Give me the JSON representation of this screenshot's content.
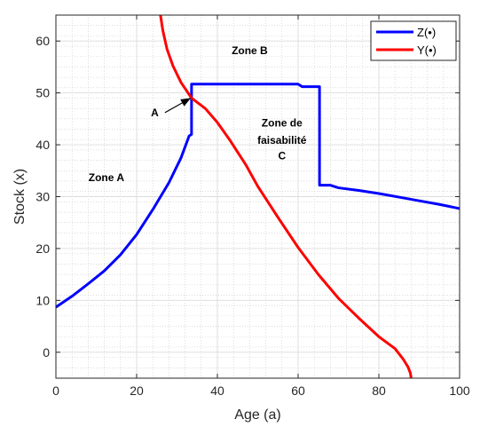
{
  "chart_data": {
    "type": "line",
    "title": "",
    "xlabel": "Age (a)",
    "ylabel": "Stock (x)",
    "xlim": [
      0,
      100
    ],
    "ylim": [
      -5,
      65
    ],
    "xticks": [
      0,
      20,
      40,
      60,
      80,
      100
    ],
    "yticks": [
      0,
      10,
      20,
      30,
      40,
      50,
      60
    ],
    "xtick_labels": [
      "0",
      "20",
      "40",
      "60",
      "80",
      "100"
    ],
    "ytick_labels": [
      "0",
      "10",
      "20",
      "30",
      "40",
      "50",
      "60"
    ],
    "grid": true,
    "minor_grid": true,
    "legend_position": "top-right",
    "series": [
      {
        "name": "Z(•)",
        "color": "#0000ff",
        "x": [
          0,
          4,
          8,
          12,
          16,
          20,
          24,
          28,
          31,
          33,
          33.6,
          33.6,
          40,
          50,
          60,
          61,
          65,
          65.3,
          65.3,
          68,
          70,
          75,
          80,
          85,
          90,
          95,
          100
        ],
        "y": [
          8.7,
          10.8,
          13.2,
          15.7,
          18.8,
          22.7,
          27.5,
          32.7,
          37.5,
          41.7,
          42.0,
          51.7,
          51.7,
          51.7,
          51.7,
          51.2,
          51.2,
          51.2,
          32.2,
          32.2,
          31.7,
          31.2,
          30.6,
          29.9,
          29.2,
          28.5,
          27.7
        ]
      },
      {
        "name": "Y(•)",
        "color": "#ff0000",
        "x": [
          25.9,
          26.5,
          27.5,
          29,
          31,
          33.6,
          37,
          40,
          43,
          47,
          50,
          55,
          60,
          65,
          70,
          75,
          80,
          84,
          86,
          87.2,
          87.8,
          88.0
        ],
        "y": [
          65,
          62.0,
          58.5,
          55.2,
          52.0,
          49.0,
          47.0,
          44.3,
          41.0,
          36.2,
          32.0,
          26.0,
          20.2,
          15.0,
          10.4,
          6.6,
          3.0,
          0.7,
          -1.3,
          -2.8,
          -4.0,
          -5
        ]
      }
    ],
    "annotations": [
      {
        "text": "Zone A",
        "x": 12.5,
        "y": 33
      },
      {
        "text": "Zone B",
        "x": 48,
        "y": 57.5
      },
      {
        "text": "Zone de",
        "x": 56,
        "y": 43.5
      },
      {
        "text": "faisabilité",
        "x": 56,
        "y": 40.2
      },
      {
        "text": "C",
        "x": 56,
        "y": 37.2
      },
      {
        "text": "A",
        "x": 24.5,
        "y": 45.5
      }
    ],
    "arrow": {
      "from_x": 27,
      "from_y": 46.2,
      "to_x": 33.4,
      "to_y": 49.0
    }
  }
}
